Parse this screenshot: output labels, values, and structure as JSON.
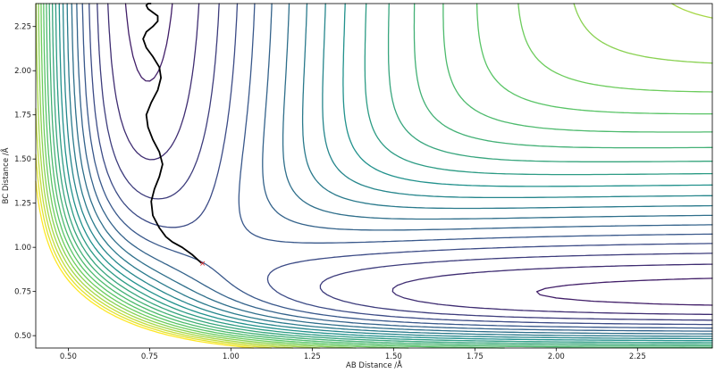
{
  "chart_data": {
    "type": "line",
    "subtype": "contour",
    "title": "",
    "xlabel": "AB Distance /Å",
    "ylabel": "BC Distance /Å",
    "xlim": [
      0.4,
      2.48
    ],
    "ylim": [
      0.43,
      2.38
    ],
    "x_ticks": [
      0.5,
      0.75,
      1.0,
      1.25,
      1.5,
      1.75,
      2.0,
      2.25
    ],
    "y_ticks": [
      0.5,
      0.75,
      1.0,
      1.25,
      1.5,
      1.75,
      2.0,
      2.25
    ],
    "x_tick_labels": [
      "0.50",
      "0.75",
      "1.00",
      "1.25",
      "1.50",
      "1.75",
      "2.00",
      "2.25"
    ],
    "y_tick_labels": [
      "0.50",
      "0.75",
      "1.00",
      "1.25",
      "1.50",
      "1.75",
      "2.00",
      "2.25"
    ],
    "grid": false,
    "colormap": "viridis",
    "colormap_stops": [
      "#440154",
      "#3b528b",
      "#21918c",
      "#5ec962",
      "#fde725"
    ],
    "line_color": "#000000",
    "start_marker_color": "#d62728",
    "series": [
      {
        "x": [
          0.91,
          0.88,
          0.85,
          0.82,
          0.8,
          0.78,
          0.76,
          0.755,
          0.765,
          0.78,
          0.79,
          0.78,
          0.76,
          0.745,
          0.74,
          0.755,
          0.775,
          0.785,
          0.78,
          0.76,
          0.74,
          0.73,
          0.74,
          0.76,
          0.775,
          0.775,
          0.76,
          0.745,
          0.74,
          0.745,
          0.755
        ],
        "y": [
          0.91,
          0.96,
          1.0,
          1.03,
          1.06,
          1.11,
          1.18,
          1.26,
          1.33,
          1.4,
          1.47,
          1.54,
          1.61,
          1.68,
          1.75,
          1.82,
          1.89,
          1.96,
          2.02,
          2.08,
          2.13,
          2.18,
          2.22,
          2.25,
          2.28,
          2.31,
          2.33,
          2.35,
          2.37,
          2.38,
          2.38
        ]
      }
    ]
  }
}
